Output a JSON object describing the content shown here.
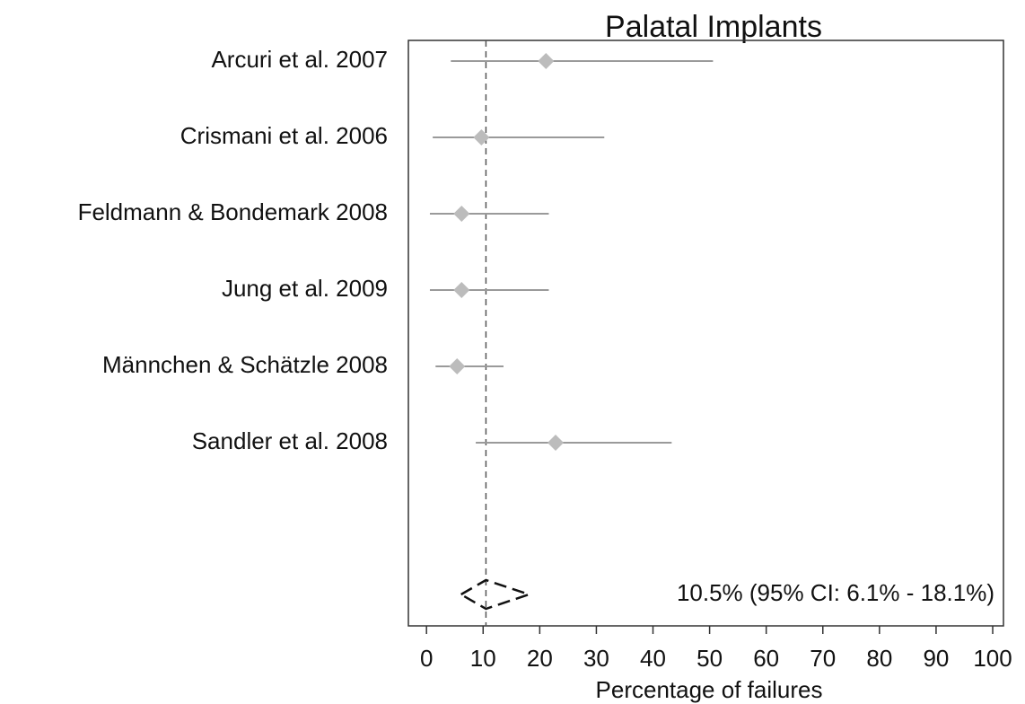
{
  "chart_data": {
    "type": "forest",
    "title": "Palatal Implants",
    "xlabel": "Percentage of failures",
    "studies": [
      {
        "name": "Arcuri et al. 2007",
        "value": 21.1,
        "lower": 4.3,
        "upper": 50.6
      },
      {
        "name": "Crismani et al. 2006",
        "value": 9.7,
        "lower": 1.1,
        "upper": 31.4
      },
      {
        "name": "Feldmann & Bondemark 2008",
        "value": 6.2,
        "lower": 0.6,
        "upper": 21.6
      },
      {
        "name": "Jung et al. 2009",
        "value": 6.2,
        "lower": 0.6,
        "upper": 21.6
      },
      {
        "name": "Männchen & Schätzle 2008",
        "value": 5.4,
        "lower": 1.6,
        "upper": 13.6
      },
      {
        "name": "Sandler et al. 2008",
        "value": 22.8,
        "lower": 8.7,
        "upper": 43.3
      }
    ],
    "pooled": {
      "value": 10.5,
      "lower": 6.1,
      "upper": 18.1,
      "label": "10.5%  (95% CI: 6.1% - 18.1%)"
    },
    "color": "#bcbcbc",
    "ci_color": "#9a9a9a",
    "xlim": [
      -3.2,
      101.9
    ],
    "xticks": [
      0,
      10,
      20,
      30,
      40,
      50,
      60,
      70,
      80,
      90,
      100
    ]
  }
}
